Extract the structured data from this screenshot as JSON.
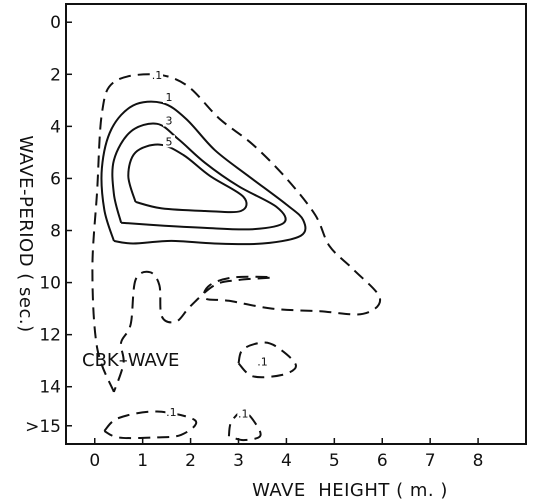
{
  "chart_data": {
    "type": "contour",
    "xlabel": "WAVE  HEIGHT ( m. )",
    "ylabel": "WAVE-PERIOD ( sec.)",
    "xlim": [
      -0.6,
      9.0
    ],
    "ylim": [
      -0.7,
      16.2
    ],
    "y_inverted": true,
    "x_ticks": [
      {
        "value": 0,
        "label": "0"
      },
      {
        "value": 1,
        "label": "1"
      },
      {
        "value": 2,
        "label": "2"
      },
      {
        "value": 3,
        "label": "3"
      },
      {
        "value": 4,
        "label": "4"
      },
      {
        "value": 5,
        "label": "5"
      },
      {
        "value": 6,
        "label": "6"
      },
      {
        "value": 7,
        "label": "7"
      },
      {
        "value": 8,
        "label": "8"
      }
    ],
    "y_ticks": [
      {
        "value": 0,
        "label": "0"
      },
      {
        "value": 2,
        "label": "2"
      },
      {
        "value": 4,
        "label": "4"
      },
      {
        "value": 6,
        "label": "6"
      },
      {
        "value": 8,
        "label": "8"
      },
      {
        "value": 10,
        "label": "10"
      },
      {
        "value": 12,
        "label": "12"
      },
      {
        "value": 14,
        "label": "14"
      },
      {
        "value": 15.5,
        "label": ">15"
      }
    ],
    "annotation": "CBK–WAVE",
    "contours": [
      {
        "level": "0.1",
        "style": "dashed",
        "label_text": ".1",
        "label_at": [
          1.3,
          2.1
        ],
        "points": [
          [
            0.4,
            14.2
          ],
          [
            0.05,
            12.5
          ],
          [
            -0.05,
            9.5
          ],
          [
            0.05,
            6.5
          ],
          [
            0.15,
            3.5
          ],
          [
            0.4,
            2.3
          ],
          [
            1.2,
            2.0
          ],
          [
            1.9,
            2.4
          ],
          [
            2.6,
            3.7
          ],
          [
            3.3,
            4.7
          ],
          [
            4.0,
            6.0
          ],
          [
            4.6,
            7.4
          ],
          [
            4.9,
            8.6
          ],
          [
            5.4,
            9.5
          ],
          [
            5.95,
            10.6
          ],
          [
            5.6,
            11.2
          ],
          [
            4.7,
            11.1
          ],
          [
            3.7,
            11.0
          ],
          [
            2.8,
            10.7
          ],
          [
            2.3,
            10.6
          ],
          [
            2.4,
            10.1
          ],
          [
            2.9,
            9.8
          ],
          [
            3.7,
            9.8
          ],
          [
            3.0,
            9.9
          ],
          [
            2.5,
            10.1
          ],
          [
            2.0,
            10.9
          ],
          [
            1.7,
            11.5
          ],
          [
            1.4,
            11.3
          ],
          [
            1.35,
            10.1
          ],
          [
            1.15,
            9.6
          ],
          [
            0.85,
            9.9
          ],
          [
            0.75,
            11.6
          ],
          [
            0.55,
            12.3
          ],
          [
            0.6,
            13.1
          ],
          [
            0.4,
            14.2
          ]
        ]
      },
      {
        "level": "1",
        "style": "solid",
        "label_text": "1",
        "label_at": [
          1.55,
          2.95
        ],
        "points": [
          [
            0.4,
            8.4
          ],
          [
            0.2,
            7.2
          ],
          [
            0.15,
            5.6
          ],
          [
            0.35,
            4.1
          ],
          [
            0.8,
            3.2
          ],
          [
            1.4,
            3.1
          ],
          [
            1.9,
            3.7
          ],
          [
            2.5,
            4.9
          ],
          [
            3.2,
            5.9
          ],
          [
            4.0,
            7.0
          ],
          [
            4.35,
            7.6
          ],
          [
            4.3,
            8.2
          ],
          [
            3.5,
            8.5
          ],
          [
            2.5,
            8.5
          ],
          [
            1.6,
            8.4
          ],
          [
            0.8,
            8.5
          ],
          [
            0.4,
            8.4
          ]
        ]
      },
      {
        "level": "3",
        "style": "solid",
        "label_text": "3",
        "label_at": [
          1.55,
          3.85
        ],
        "points": [
          [
            0.55,
            7.7
          ],
          [
            0.4,
            6.6
          ],
          [
            0.4,
            5.3
          ],
          [
            0.75,
            4.2
          ],
          [
            1.3,
            3.9
          ],
          [
            1.75,
            4.5
          ],
          [
            2.3,
            5.4
          ],
          [
            3.0,
            6.3
          ],
          [
            3.8,
            7.1
          ],
          [
            3.95,
            7.7
          ],
          [
            3.3,
            7.95
          ],
          [
            2.3,
            7.9
          ],
          [
            1.3,
            7.8
          ],
          [
            0.55,
            7.7
          ]
        ]
      },
      {
        "level": "5",
        "style": "solid",
        "label_text": "5",
        "label_at": [
          1.55,
          4.65
        ],
        "points": [
          [
            0.85,
            6.9
          ],
          [
            0.7,
            5.9
          ],
          [
            0.85,
            5.0
          ],
          [
            1.35,
            4.7
          ],
          [
            1.85,
            5.1
          ],
          [
            2.4,
            5.9
          ],
          [
            3.1,
            6.7
          ],
          [
            3.05,
            7.25
          ],
          [
            2.3,
            7.25
          ],
          [
            1.4,
            7.15
          ],
          [
            0.85,
            6.9
          ]
        ]
      },
      {
        "level": "0.1",
        "style": "dashed",
        "label_text": ".1",
        "label_at": [
          3.5,
          13.1
        ],
        "points": [
          [
            3.0,
            13.1
          ],
          [
            3.1,
            12.55
          ],
          [
            3.55,
            12.3
          ],
          [
            3.9,
            12.6
          ],
          [
            4.2,
            13.2
          ],
          [
            3.9,
            13.55
          ],
          [
            3.3,
            13.6
          ],
          [
            3.0,
            13.1
          ]
        ]
      },
      {
        "level": "0.1",
        "style": "dashed",
        "label_text": ".1",
        "label_at": [
          1.6,
          15.05
        ],
        "points": [
          [
            0.2,
            15.7
          ],
          [
            0.5,
            15.2
          ],
          [
            1.3,
            14.95
          ],
          [
            2.1,
            15.3
          ],
          [
            1.8,
            15.85
          ],
          [
            1.2,
            15.95
          ],
          [
            0.5,
            15.95
          ],
          [
            0.2,
            15.7
          ]
        ]
      },
      {
        "level": "0.1",
        "style": "dashed",
        "label_text": ".1",
        "label_at": [
          3.1,
          15.1
        ],
        "points": [
          [
            2.8,
            15.9
          ],
          [
            2.85,
            15.35
          ],
          [
            3.1,
            14.95
          ],
          [
            3.35,
            15.4
          ],
          [
            3.45,
            15.9
          ],
          [
            3.1,
            16.05
          ],
          [
            2.8,
            15.9
          ]
        ]
      }
    ]
  }
}
